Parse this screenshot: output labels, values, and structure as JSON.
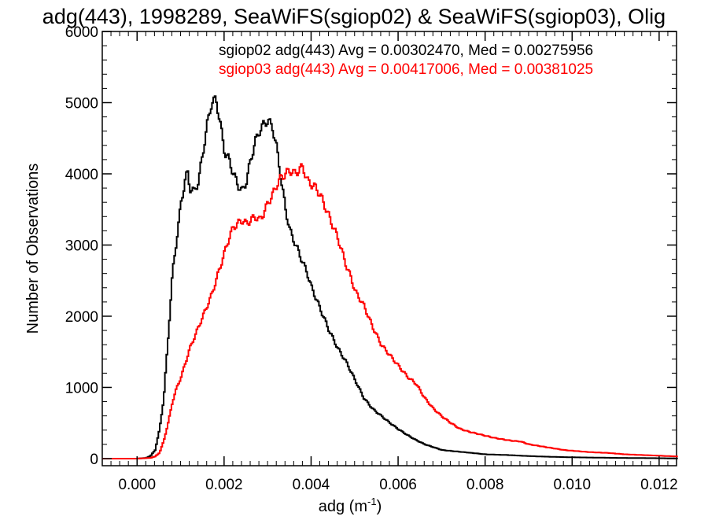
{
  "chart_data": {
    "type": "line",
    "title": "adg(443), 1998289, SeaWiFS(sgiop02) & SeaWiFS(sgiop03), Olig",
    "xlabel": "adg (m",
    "xlabel_exponent": "-1",
    "xlabel_close": ")",
    "ylabel": "Number of Observations",
    "xlim": [
      -0.0008,
      0.0124
    ],
    "ylim": [
      -100,
      6000
    ],
    "xticks": [
      0.0,
      0.002,
      0.004,
      0.006,
      0.008,
      0.01,
      0.012
    ],
    "xtick_labels": [
      "0.000",
      "0.002",
      "0.004",
      "0.006",
      "0.008",
      "0.010",
      "0.012"
    ],
    "yticks": [
      0,
      1000,
      2000,
      3000,
      4000,
      5000,
      6000
    ],
    "ytick_labels": [
      "0",
      "1000",
      "2000",
      "3000",
      "4000",
      "5000",
      "6000"
    ],
    "grid": false,
    "legend_position": "top-right",
    "series": [
      {
        "name": "sgiop02",
        "legend_text": "sgiop02 adg(443) Avg = 0.00302470, Med = 0.00275956",
        "color": "#000000",
        "points": [
          [
            -0.0008,
            0
          ],
          [
            0.0,
            0
          ],
          [
            0.0002,
            10
          ],
          [
            0.0003,
            40
          ],
          [
            0.0004,
            120
          ],
          [
            0.0005,
            400
          ],
          [
            0.0006,
            850
          ],
          [
            0.0007,
            1700
          ],
          [
            0.0008,
            2600
          ],
          [
            0.0009,
            3100
          ],
          [
            0.001,
            3600
          ],
          [
            0.0011,
            3950
          ],
          [
            0.00115,
            4000
          ],
          [
            0.0012,
            3800
          ],
          [
            0.0013,
            3750
          ],
          [
            0.0014,
            3900
          ],
          [
            0.0015,
            4300
          ],
          [
            0.0016,
            4700
          ],
          [
            0.0017,
            5000
          ],
          [
            0.0018,
            5050
          ],
          [
            0.0019,
            4700
          ],
          [
            0.002,
            4300
          ],
          [
            0.0021,
            4200
          ],
          [
            0.0022,
            4000
          ],
          [
            0.0023,
            3850
          ],
          [
            0.0024,
            3750
          ],
          [
            0.0025,
            3900
          ],
          [
            0.0026,
            4200
          ],
          [
            0.0027,
            4450
          ],
          [
            0.0028,
            4600
          ],
          [
            0.0029,
            4700
          ],
          [
            0.003,
            4750
          ],
          [
            0.0031,
            4650
          ],
          [
            0.0032,
            4350
          ],
          [
            0.0033,
            3900
          ],
          [
            0.0034,
            3500
          ],
          [
            0.0035,
            3200
          ],
          [
            0.0036,
            3050
          ],
          [
            0.0037,
            2900
          ],
          [
            0.0038,
            2750
          ],
          [
            0.0039,
            2600
          ],
          [
            0.004,
            2400
          ],
          [
            0.0042,
            2100
          ],
          [
            0.0044,
            1800
          ],
          [
            0.0046,
            1550
          ],
          [
            0.0048,
            1350
          ],
          [
            0.005,
            1100
          ],
          [
            0.0052,
            850
          ],
          [
            0.0054,
            700
          ],
          [
            0.0056,
            600
          ],
          [
            0.0058,
            500
          ],
          [
            0.006,
            410
          ],
          [
            0.0062,
            330
          ],
          [
            0.0064,
            260
          ],
          [
            0.0066,
            200
          ],
          [
            0.0068,
            160
          ],
          [
            0.007,
            120
          ],
          [
            0.0075,
            90
          ],
          [
            0.008,
            60
          ],
          [
            0.0085,
            50
          ],
          [
            0.009,
            35
          ],
          [
            0.0095,
            25
          ],
          [
            0.01,
            18
          ],
          [
            0.011,
            10
          ],
          [
            0.012,
            5
          ],
          [
            0.0124,
            3
          ]
        ]
      },
      {
        "name": "sgiop03",
        "legend_text": "sgiop03 adg(443) Avg = 0.00417006, Med = 0.00381025",
        "color": "#ff0000",
        "points": [
          [
            -0.0008,
            0
          ],
          [
            0.0,
            0
          ],
          [
            0.0003,
            10
          ],
          [
            0.0004,
            30
          ],
          [
            0.0005,
            80
          ],
          [
            0.0006,
            250
          ],
          [
            0.0007,
            500
          ],
          [
            0.0008,
            800
          ],
          [
            0.0009,
            1000
          ],
          [
            0.001,
            1150
          ],
          [
            0.0011,
            1350
          ],
          [
            0.0012,
            1550
          ],
          [
            0.0013,
            1700
          ],
          [
            0.0014,
            1850
          ],
          [
            0.0015,
            2000
          ],
          [
            0.0016,
            2150
          ],
          [
            0.0017,
            2300
          ],
          [
            0.0018,
            2500
          ],
          [
            0.0019,
            2700
          ],
          [
            0.002,
            2900
          ],
          [
            0.0021,
            3100
          ],
          [
            0.0022,
            3250
          ],
          [
            0.0023,
            3300
          ],
          [
            0.0024,
            3350
          ],
          [
            0.0025,
            3300
          ],
          [
            0.0026,
            3350
          ],
          [
            0.0027,
            3400
          ],
          [
            0.0028,
            3350
          ],
          [
            0.0029,
            3450
          ],
          [
            0.003,
            3600
          ],
          [
            0.0031,
            3700
          ],
          [
            0.0032,
            3850
          ],
          [
            0.0033,
            3950
          ],
          [
            0.0034,
            4000
          ],
          [
            0.0035,
            4050
          ],
          [
            0.0036,
            4000
          ],
          [
            0.0037,
            4050
          ],
          [
            0.0038,
            4100
          ],
          [
            0.0039,
            3900
          ],
          [
            0.004,
            3850
          ],
          [
            0.0041,
            3800
          ],
          [
            0.0042,
            3700
          ],
          [
            0.0043,
            3550
          ],
          [
            0.0044,
            3400
          ],
          [
            0.0045,
            3250
          ],
          [
            0.0046,
            3100
          ],
          [
            0.0047,
            2900
          ],
          [
            0.0048,
            2700
          ],
          [
            0.0049,
            2550
          ],
          [
            0.005,
            2350
          ],
          [
            0.0052,
            2150
          ],
          [
            0.0054,
            1850
          ],
          [
            0.0056,
            1600
          ],
          [
            0.0058,
            1450
          ],
          [
            0.006,
            1300
          ],
          [
            0.0062,
            1150
          ],
          [
            0.0064,
            1050
          ],
          [
            0.0066,
            850
          ],
          [
            0.0068,
            700
          ],
          [
            0.007,
            590
          ],
          [
            0.0072,
            500
          ],
          [
            0.0074,
            420
          ],
          [
            0.0076,
            380
          ],
          [
            0.0078,
            350
          ],
          [
            0.008,
            320
          ],
          [
            0.0082,
            290
          ],
          [
            0.0084,
            270
          ],
          [
            0.0086,
            250
          ],
          [
            0.0088,
            240
          ],
          [
            0.009,
            200
          ],
          [
            0.0092,
            180
          ],
          [
            0.0094,
            160
          ],
          [
            0.0096,
            140
          ],
          [
            0.0098,
            120
          ],
          [
            0.01,
            110
          ],
          [
            0.0104,
            90
          ],
          [
            0.0108,
            80
          ],
          [
            0.0112,
            60
          ],
          [
            0.0116,
            50
          ],
          [
            0.012,
            40
          ],
          [
            0.0124,
            30
          ]
        ]
      }
    ]
  }
}
